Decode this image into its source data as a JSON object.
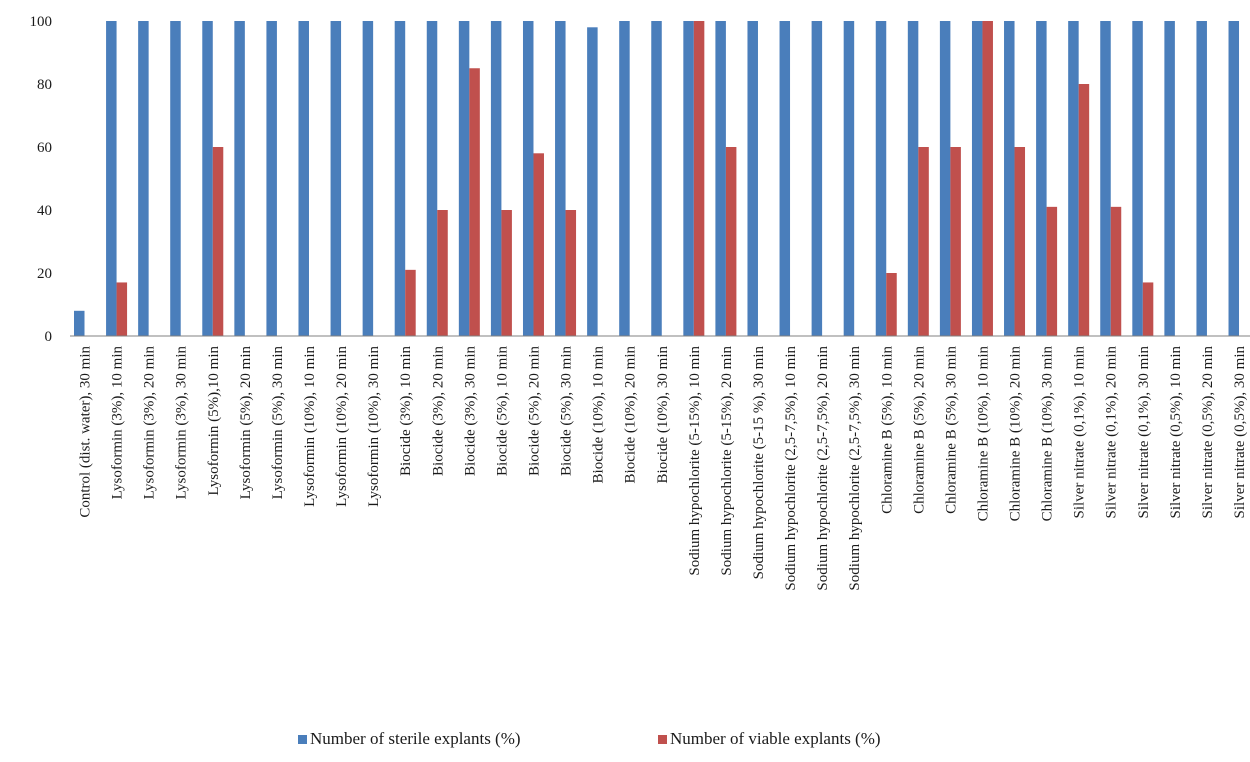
{
  "chart_data": {
    "type": "bar",
    "title": "",
    "xlabel": "",
    "ylabel": "",
    "ylim": [
      0,
      100
    ],
    "yticks": [
      0,
      20,
      40,
      60,
      80,
      100
    ],
    "grid": false,
    "legend_position": "bottom",
    "categories": [
      "Control (dist. water), 30 min",
      "Lysoformin  (3%), 10 min",
      "Lysoformin  (3%), 20 min",
      "Lysoformin  (3%), 30 min",
      "Lysoformin  (5%),10 min",
      "Lysoformin  (5%), 20 min",
      "Lysoformin  (5%), 30 min",
      "Lysoformin  (10%), 10 min",
      "Lysoformin  (10%), 20 min",
      "Lysoformin  (10%), 30 min",
      "Biocide (3%), 10 min",
      "Biocide (3%), 20 min",
      "Biocide (3%), 30 min",
      "Biocide (5%), 10 min",
      "Biocide (5%), 20 min",
      "Biocide (5%), 30 min",
      "Biocide (10%), 10 min",
      "Biocide (10%), 20 min",
      "Biocide (10%), 30 min",
      "Sodium hypochlorite (5-15%), 10 min",
      "Sodium hypochlorite (5-15%), 20 min",
      "Sodium hypochlorite (5-15 %), 30 min",
      "Sodium hypochlorite (2,5-7,5%), 10 min",
      "Sodium hypochlorite (2,5-7,5%), 20 min",
      "Sodium hypochlorite (2,5-7,5%), 30 min",
      "Chloramine B (5%), 10 min",
      "Chloramine B (5%), 20 min",
      "Chloramine B (5%), 30 min",
      "Chloramine B (10%), 10 min",
      "Chloramine B (10%), 20 min",
      "Chloramine B (10%), 30 min",
      "Silver nitrate (0,1%), 10 min",
      "Silver nitrate (0,1%), 20 min",
      "Silver nitrate (0,1%), 30 min",
      "Silver nitrate (0,5%), 10 min",
      "Silver nitrate (0,5%), 20 min",
      "Silver nitrate (0,5%), 30 min"
    ],
    "series": [
      {
        "name": "Number of sterile explants (%)",
        "color": "#4a7ebb",
        "values": [
          8,
          100,
          100,
          100,
          100,
          100,
          100,
          100,
          100,
          100,
          100,
          100,
          100,
          100,
          100,
          100,
          98,
          100,
          100,
          100,
          100,
          100,
          100,
          100,
          100,
          100,
          100,
          100,
          100,
          100,
          100,
          100,
          100,
          100,
          100,
          100,
          100
        ]
      },
      {
        "name": "Number of viable explants (%)",
        "color": "#c0504d",
        "values": [
          0,
          17,
          0,
          0,
          60,
          0,
          0,
          0,
          0,
          0,
          21,
          40,
          85,
          40,
          58,
          40,
          0,
          0,
          0,
          100,
          60,
          0,
          0,
          0,
          0,
          20,
          60,
          60,
          100,
          60,
          41,
          80,
          41,
          17,
          0,
          0,
          0
        ]
      }
    ]
  }
}
